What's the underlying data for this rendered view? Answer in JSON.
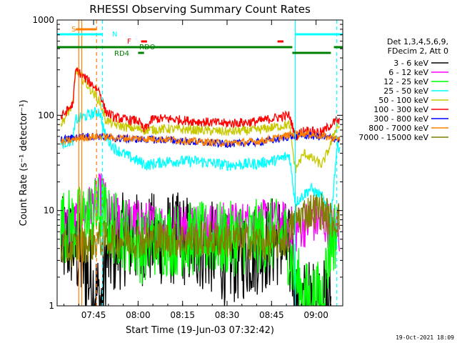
{
  "chart_data": {
    "type": "line",
    "title": "RHESSI Observing Summary Count Rates",
    "xlabel": "Start Time (19-Jun-03 07:32:42)",
    "ylabel": "Count Rate (s⁻¹ detector⁻¹)",
    "y_scale": "log",
    "ylim": [
      1,
      1000
    ],
    "xlim": [
      "07:32:42",
      "09:09:00"
    ],
    "x_ticks": [
      "07:45",
      "08:00",
      "08:15",
      "08:30",
      "08:45",
      "09:00"
    ],
    "y_ticks": [
      "1",
      "10",
      "100",
      "1000"
    ],
    "legend_header": [
      "Det 1,3,4,5,6,9,",
      "FDecim 2, Att 0"
    ],
    "legend_position": "right",
    "timestamp": "19-Oct-2021 18:09",
    "flags": [
      {
        "label": "S",
        "color": "#ff7f00",
        "segments": [
          [
            "07:39",
            "07:46"
          ]
        ]
      },
      {
        "label": "N",
        "color": "#00ffff",
        "segments": [
          [
            "07:32",
            "07:48"
          ],
          [
            "08:53",
            "09:09"
          ]
        ]
      },
      {
        "label": "F",
        "color": "#ff0000",
        "segments": [
          [
            "08:01",
            "08:03"
          ],
          [
            "08:47",
            "08:49"
          ]
        ]
      },
      {
        "label": "RDO",
        "color": "#008000",
        "segments": [
          [
            "07:32",
            "08:52"
          ],
          [
            "09:06",
            "09:09"
          ]
        ]
      },
      {
        "label": "RD4",
        "color": "#008000",
        "segments": [
          [
            "08:00",
            "08:02"
          ],
          [
            "08:52",
            "09:05"
          ]
        ]
      }
    ],
    "vlines": [
      {
        "t": "07:40",
        "color": "#ff7f00",
        "style": "solid"
      },
      {
        "t": "07:41",
        "color": "#ff7f00",
        "style": "solid"
      },
      {
        "t": "07:46",
        "color": "#ff7f00",
        "style": "dashed"
      },
      {
        "t": "07:48",
        "color": "#00ffff",
        "style": "dashed"
      },
      {
        "t": "08:53",
        "color": "#00ffff",
        "style": "solid"
      },
      {
        "t": "09:07",
        "color": "#00ffff",
        "style": "dashed"
      }
    ],
    "series": [
      {
        "name": "3 - 6 keV",
        "color": "#000000",
        "noise": 0.5,
        "points": [
          [
            "07:34",
            4.5
          ],
          [
            "07:38",
            4.5
          ],
          [
            "07:48",
            1
          ],
          [
            "07:49",
            3
          ],
          [
            "07:55",
            5
          ],
          [
            "08:05",
            5
          ],
          [
            "08:15",
            5
          ],
          [
            "08:25",
            4
          ],
          [
            "08:30",
            3
          ],
          [
            "08:40",
            4
          ],
          [
            "08:48",
            5
          ],
          [
            "08:52",
            3
          ],
          [
            "08:54",
            1
          ],
          [
            "09:00",
            1
          ],
          [
            "09:05",
            1
          ]
        ]
      },
      {
        "name": "6 - 12 keV",
        "color": "#ff00ff",
        "noise": 0.25,
        "points": [
          [
            "07:34",
            7
          ],
          [
            "07:38",
            7
          ],
          [
            "07:48",
            15
          ],
          [
            "07:50",
            9
          ],
          [
            "07:55",
            8
          ],
          [
            "08:05",
            7
          ],
          [
            "08:15",
            7
          ],
          [
            "08:30",
            7
          ],
          [
            "08:45",
            7.5
          ],
          [
            "08:50",
            7
          ],
          [
            "08:53",
            6
          ],
          [
            "08:55",
            7
          ],
          [
            "09:00",
            8
          ],
          [
            "09:05",
            7
          ],
          [
            "09:08",
            6
          ]
        ]
      },
      {
        "name": "12 - 25 keV",
        "color": "#00ff00",
        "noise": 0.4,
        "points": [
          [
            "07:34",
            7
          ],
          [
            "07:38",
            7
          ],
          [
            "07:48",
            10
          ],
          [
            "07:50",
            7
          ],
          [
            "07:55",
            6
          ],
          [
            "08:02",
            4
          ],
          [
            "08:05",
            5
          ],
          [
            "08:15",
            5
          ],
          [
            "08:30",
            5
          ],
          [
            "08:45",
            5.5
          ],
          [
            "08:50",
            5
          ],
          [
            "08:53",
            2
          ],
          [
            "08:56",
            1.2
          ],
          [
            "09:02",
            1.2
          ],
          [
            "09:05",
            5
          ],
          [
            "09:07",
            6
          ]
        ]
      },
      {
        "name": "25 - 50 keV",
        "color": "#00ffff",
        "noise": 0.06,
        "points": [
          [
            "07:34",
            50
          ],
          [
            "07:38",
            55
          ],
          [
            "07:39",
            90
          ],
          [
            "07:47",
            110
          ],
          [
            "07:49",
            60
          ],
          [
            "07:52",
            45
          ],
          [
            "07:56",
            38
          ],
          [
            "08:00",
            33
          ],
          [
            "08:03",
            30
          ],
          [
            "08:10",
            33
          ],
          [
            "08:20",
            33
          ],
          [
            "08:30",
            30
          ],
          [
            "08:40",
            31
          ],
          [
            "08:47",
            34
          ],
          [
            "08:51",
            38
          ],
          [
            "08:53",
            12
          ],
          [
            "08:58",
            17
          ],
          [
            "09:02",
            14
          ],
          [
            "09:05",
            8
          ],
          [
            "09:07",
            45
          ],
          [
            "09:08",
            48
          ]
        ]
      },
      {
        "name": "50 - 100 keV",
        "color": "#c8c800",
        "noise": 0.05,
        "points": [
          [
            "07:34",
            80
          ],
          [
            "07:38",
            130
          ],
          [
            "07:39",
            300
          ],
          [
            "07:47",
            140
          ],
          [
            "07:49",
            90
          ],
          [
            "07:52",
            80
          ],
          [
            "07:56",
            75
          ],
          [
            "08:00",
            72
          ],
          [
            "08:02",
            70
          ],
          [
            "08:10",
            72
          ],
          [
            "08:20",
            70
          ],
          [
            "08:30",
            67
          ],
          [
            "08:40",
            70
          ],
          [
            "08:47",
            76
          ],
          [
            "08:51",
            80
          ],
          [
            "08:53",
            27
          ],
          [
            "08:56",
            40
          ],
          [
            "09:02",
            30
          ],
          [
            "09:05",
            50
          ],
          [
            "09:07",
            80
          ],
          [
            "09:08",
            75
          ]
        ]
      },
      {
        "name": "100 - 300 keV",
        "color": "#ff0000",
        "noise": 0.05,
        "points": [
          [
            "07:34",
            95
          ],
          [
            "07:38",
            130
          ],
          [
            "07:39",
            300
          ],
          [
            "07:47",
            180
          ],
          [
            "07:49",
            110
          ],
          [
            "07:52",
            95
          ],
          [
            "07:56",
            90
          ],
          [
            "08:00",
            88
          ],
          [
            "08:02",
            70
          ],
          [
            "08:05",
            92
          ],
          [
            "08:10",
            92
          ],
          [
            "08:20",
            86
          ],
          [
            "08:30",
            82
          ],
          [
            "08:40",
            86
          ],
          [
            "08:47",
            95
          ],
          [
            "08:51",
            100
          ],
          [
            "08:53",
            60
          ],
          [
            "08:56",
            70
          ],
          [
            "09:02",
            66
          ],
          [
            "09:05",
            80
          ],
          [
            "09:07",
            88
          ],
          [
            "09:08",
            85
          ]
        ]
      },
      {
        "name": "300 - 800 keV",
        "color": "#0000ff",
        "noise": 0.04,
        "points": [
          [
            "07:34",
            55
          ],
          [
            "07:38",
            58
          ],
          [
            "07:40",
            60
          ],
          [
            "07:47",
            60
          ],
          [
            "07:52",
            57
          ],
          [
            "08:00",
            56
          ],
          [
            "08:10",
            55
          ],
          [
            "08:20",
            52
          ],
          [
            "08:30",
            50
          ],
          [
            "08:40",
            52
          ],
          [
            "08:47",
            56
          ],
          [
            "08:51",
            60
          ],
          [
            "08:55",
            62
          ],
          [
            "09:00",
            60
          ],
          [
            "09:05",
            58
          ],
          [
            "09:08",
            55
          ]
        ]
      },
      {
        "name": "800 - 7000 keV",
        "color": "#ff8000",
        "noise": 0.04,
        "points": [
          [
            "07:34",
            52
          ],
          [
            "07:38",
            55
          ],
          [
            "07:40",
            58
          ],
          [
            "07:47",
            60
          ],
          [
            "07:52",
            58
          ],
          [
            "08:00",
            57
          ],
          [
            "08:10",
            56
          ],
          [
            "08:20",
            53
          ],
          [
            "08:30",
            51
          ],
          [
            "08:40",
            53
          ],
          [
            "08:47",
            58
          ],
          [
            "08:51",
            62
          ],
          [
            "08:55",
            65
          ],
          [
            "09:00",
            62
          ],
          [
            "09:05",
            58
          ],
          [
            "09:08",
            56
          ]
        ]
      },
      {
        "name": "7000 - 15000 keV",
        "color": "#7f7f00",
        "noise": 0.2,
        "points": [
          [
            "07:34",
            4
          ],
          [
            "07:38",
            4
          ],
          [
            "07:48",
            5
          ],
          [
            "07:55",
            5
          ],
          [
            "08:05",
            5
          ],
          [
            "08:15",
            5
          ],
          [
            "08:30",
            5
          ],
          [
            "08:45",
            4.5
          ],
          [
            "08:50",
            5
          ],
          [
            "08:53",
            8
          ],
          [
            "08:58",
            10
          ],
          [
            "09:02",
            10
          ],
          [
            "09:05",
            8
          ],
          [
            "09:08",
            8
          ]
        ]
      }
    ]
  }
}
